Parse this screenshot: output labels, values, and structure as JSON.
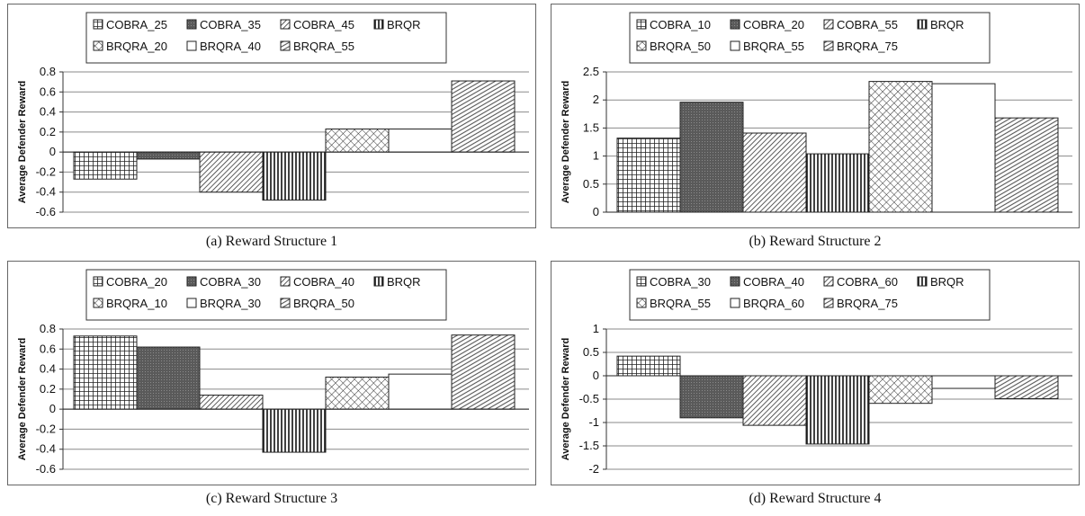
{
  "chart_data": [
    {
      "type": "bar",
      "caption": "(a) Reward Structure 1",
      "ylabel": "Average Defender Reward",
      "ylim": [
        -0.6,
        0.8
      ],
      "yticks": [
        "0.8",
        "0.6",
        "0.4",
        "0.2",
        "0",
        "-0.2",
        "-0.4",
        "-0.6"
      ],
      "grid": true,
      "legend_position": "top",
      "series": [
        {
          "name": "COBRA_25",
          "values": [
            -0.27
          ]
        },
        {
          "name": "COBRA_35",
          "values": [
            -0.07
          ]
        },
        {
          "name": "COBRA_45",
          "values": [
            -0.4
          ]
        },
        {
          "name": "BRQR",
          "values": [
            -0.48
          ]
        },
        {
          "name": "BRQRA_20",
          "values": [
            0.23
          ]
        },
        {
          "name": "BRQRA_40",
          "values": [
            0.23
          ]
        },
        {
          "name": "BRQRA_55",
          "values": [
            0.71
          ]
        }
      ]
    },
    {
      "type": "bar",
      "caption": "(b) Reward Structure 2",
      "ylabel": "Average Defender Reward",
      "ylim": [
        0,
        2.5
      ],
      "yticks": [
        "2.5",
        "2",
        "1.5",
        "1",
        "0.5",
        "0"
      ],
      "grid": true,
      "legend_position": "top",
      "series": [
        {
          "name": "COBRA_10",
          "values": [
            1.32
          ]
        },
        {
          "name": "COBRA_20",
          "values": [
            1.96
          ]
        },
        {
          "name": "COBRA_55",
          "values": [
            1.41
          ]
        },
        {
          "name": "BRQR",
          "values": [
            1.04
          ]
        },
        {
          "name": "BRQRA_50",
          "values": [
            2.33
          ]
        },
        {
          "name": "BRQRA_55",
          "values": [
            2.29
          ]
        },
        {
          "name": "BRQRA_75",
          "values": [
            1.68
          ]
        }
      ]
    },
    {
      "type": "bar",
      "caption": "(c) Reward Structure 3",
      "ylabel": "Average Defender Reward",
      "ylim": [
        -0.6,
        0.8
      ],
      "yticks": [
        "0.8",
        "0.6",
        "0.4",
        "0.2",
        "0",
        "-0.2",
        "-0.4",
        "-0.6"
      ],
      "grid": true,
      "legend_position": "top",
      "series": [
        {
          "name": "COBRA_20",
          "values": [
            0.73
          ]
        },
        {
          "name": "COBRA_30",
          "values": [
            0.62
          ]
        },
        {
          "name": "COBRA_40",
          "values": [
            0.14
          ]
        },
        {
          "name": "BRQR",
          "values": [
            -0.43
          ]
        },
        {
          "name": "BRQRA_10",
          "values": [
            0.32
          ]
        },
        {
          "name": "BRQRA_30",
          "values": [
            0.35
          ]
        },
        {
          "name": "BRQRA_50",
          "values": [
            0.74
          ]
        }
      ]
    },
    {
      "type": "bar",
      "caption": "(d) Reward Structure 4",
      "ylabel": "Average Defender Reward",
      "ylim": [
        -2,
        1
      ],
      "yticks": [
        "1",
        "0.5",
        "0",
        "-0.5",
        "-1",
        "-1.5",
        "-2"
      ],
      "grid": true,
      "legend_position": "top",
      "series": [
        {
          "name": "COBRA_30",
          "values": [
            0.42
          ]
        },
        {
          "name": "COBRA_40",
          "values": [
            -0.9
          ]
        },
        {
          "name": "COBRA_60",
          "values": [
            -1.06
          ]
        },
        {
          "name": "BRQR",
          "values": [
            -1.46
          ]
        },
        {
          "name": "BRQRA_55",
          "values": [
            -0.59
          ]
        },
        {
          "name": "BRQRA_60",
          "values": [
            -0.27
          ]
        },
        {
          "name": "BRQRA_75",
          "values": [
            -0.49
          ]
        }
      ]
    }
  ]
}
